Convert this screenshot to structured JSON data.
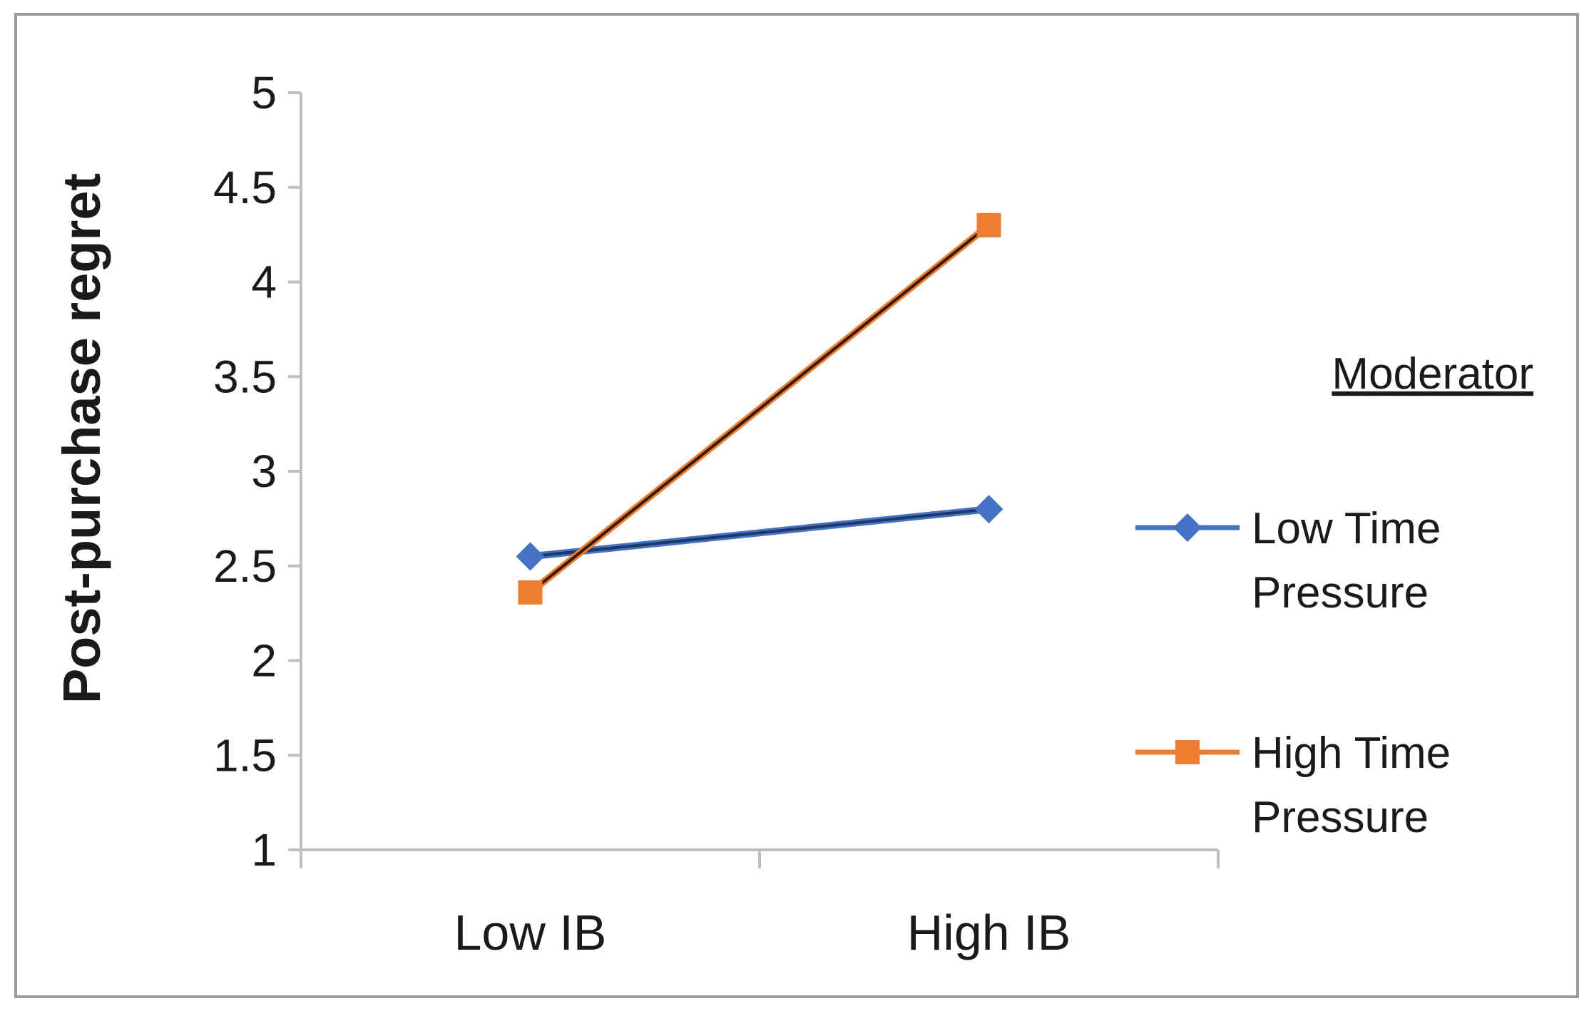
{
  "chart_data": {
    "type": "line",
    "title": "",
    "xlabel": "",
    "ylabel": "Post-purchase regret",
    "ylim": [
      1,
      5
    ],
    "yticks": [
      "1",
      "1.5",
      "2",
      "2.5",
      "3",
      "3.5",
      "4",
      "4.5",
      "5"
    ],
    "categories": [
      "Low IB",
      "High IB"
    ],
    "legend_title": "Moderator",
    "legend_position": "right",
    "series": [
      {
        "name": "Low Time Pressure",
        "name_lines": [
          "Low Time",
          "Pressure"
        ],
        "values": [
          2.55,
          2.8
        ],
        "color": "#4472C4",
        "line_color": "#1F3864",
        "marker": "diamond"
      },
      {
        "name": "High Time Pressure",
        "name_lines": [
          "High Time",
          "Pressure"
        ],
        "values": [
          2.36,
          4.3
        ],
        "color": "#ED7D31",
        "line_color": "#3A1A00",
        "marker": "square"
      }
    ],
    "grid": false
  }
}
